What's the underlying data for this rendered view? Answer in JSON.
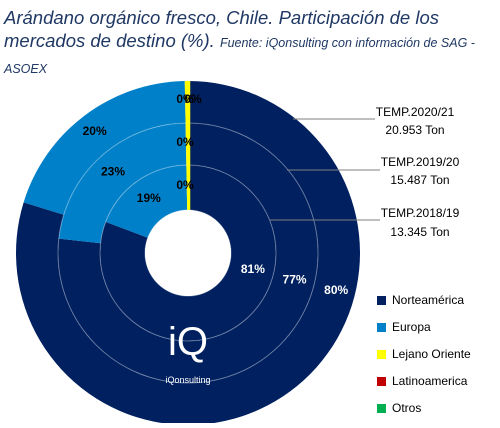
{
  "title": "Arándano orgánico fresco, Chile. Participación de los mercados de destino (%).",
  "source": "Fuente: iQonsulting con información de SAG - ASOEX",
  "logo": {
    "mark": "iQ",
    "name": "iQonsulting"
  },
  "chart_data": {
    "type": "pie",
    "variant": "concentric-donut",
    "order": "outer-to-inner",
    "categories": [
      "Norteamérica",
      "Europa",
      "Lejano Oriente",
      "Latinoamerica",
      "Otros"
    ],
    "colors": [
      "#002060",
      "#0080c8",
      "#ffff00",
      "#c00000",
      "#00b050"
    ],
    "series": [
      {
        "name": "TEMP.2020/21",
        "volume": "20.953 Ton",
        "values": [
          80,
          20,
          0.3,
          0,
          0
        ],
        "labels": [
          "80%",
          "20%",
          "0%",
          "0%",
          ""
        ]
      },
      {
        "name": "TEMP.2019/20",
        "volume": "15.487 Ton",
        "values": [
          77,
          23,
          0.3,
          0,
          0
        ],
        "labels": [
          "77%",
          "23%",
          "0%",
          "",
          ""
        ]
      },
      {
        "name": "TEMP.2018/19",
        "volume": "13.345 Ton",
        "values": [
          81,
          19,
          0.3,
          0,
          0
        ],
        "labels": [
          "81%",
          "19%",
          "0%",
          "",
          ""
        ]
      }
    ],
    "legend_position": "bottom-right"
  }
}
